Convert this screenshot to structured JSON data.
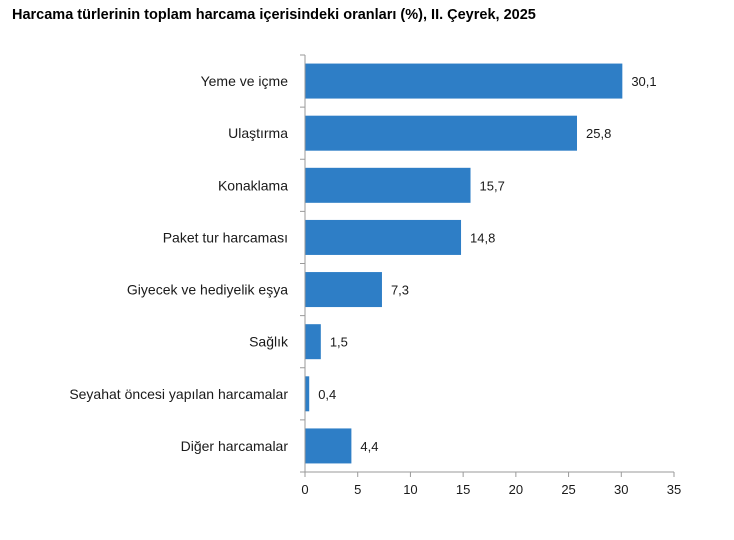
{
  "chart_data": {
    "type": "bar",
    "orientation": "horizontal",
    "title": "Harcama türlerinin toplam harcama içerisindeki oranları (%), II. Çeyrek, 2025",
    "categories": [
      "Yeme ve içme",
      "Ulaştırma",
      "Konaklama",
      "Paket tur harcaması",
      "Giyecek ve hediyelik eşya",
      "Sağlık",
      "Seyahat öncesi yapılan harcamalar",
      "Diğer harcamalar"
    ],
    "values": [
      30.1,
      25.8,
      15.7,
      14.8,
      7.3,
      1.5,
      0.4,
      4.4
    ],
    "value_labels": [
      "30,1",
      "25,8",
      "15,7",
      "14,8",
      "7,3",
      "1,5",
      "0,4",
      "4,4"
    ],
    "xlim": [
      0,
      35
    ],
    "x_ticks": [
      0,
      5,
      10,
      15,
      20,
      25,
      30,
      35
    ],
    "grid": false,
    "legend": "none",
    "bar_color": "#2e7ec6"
  }
}
